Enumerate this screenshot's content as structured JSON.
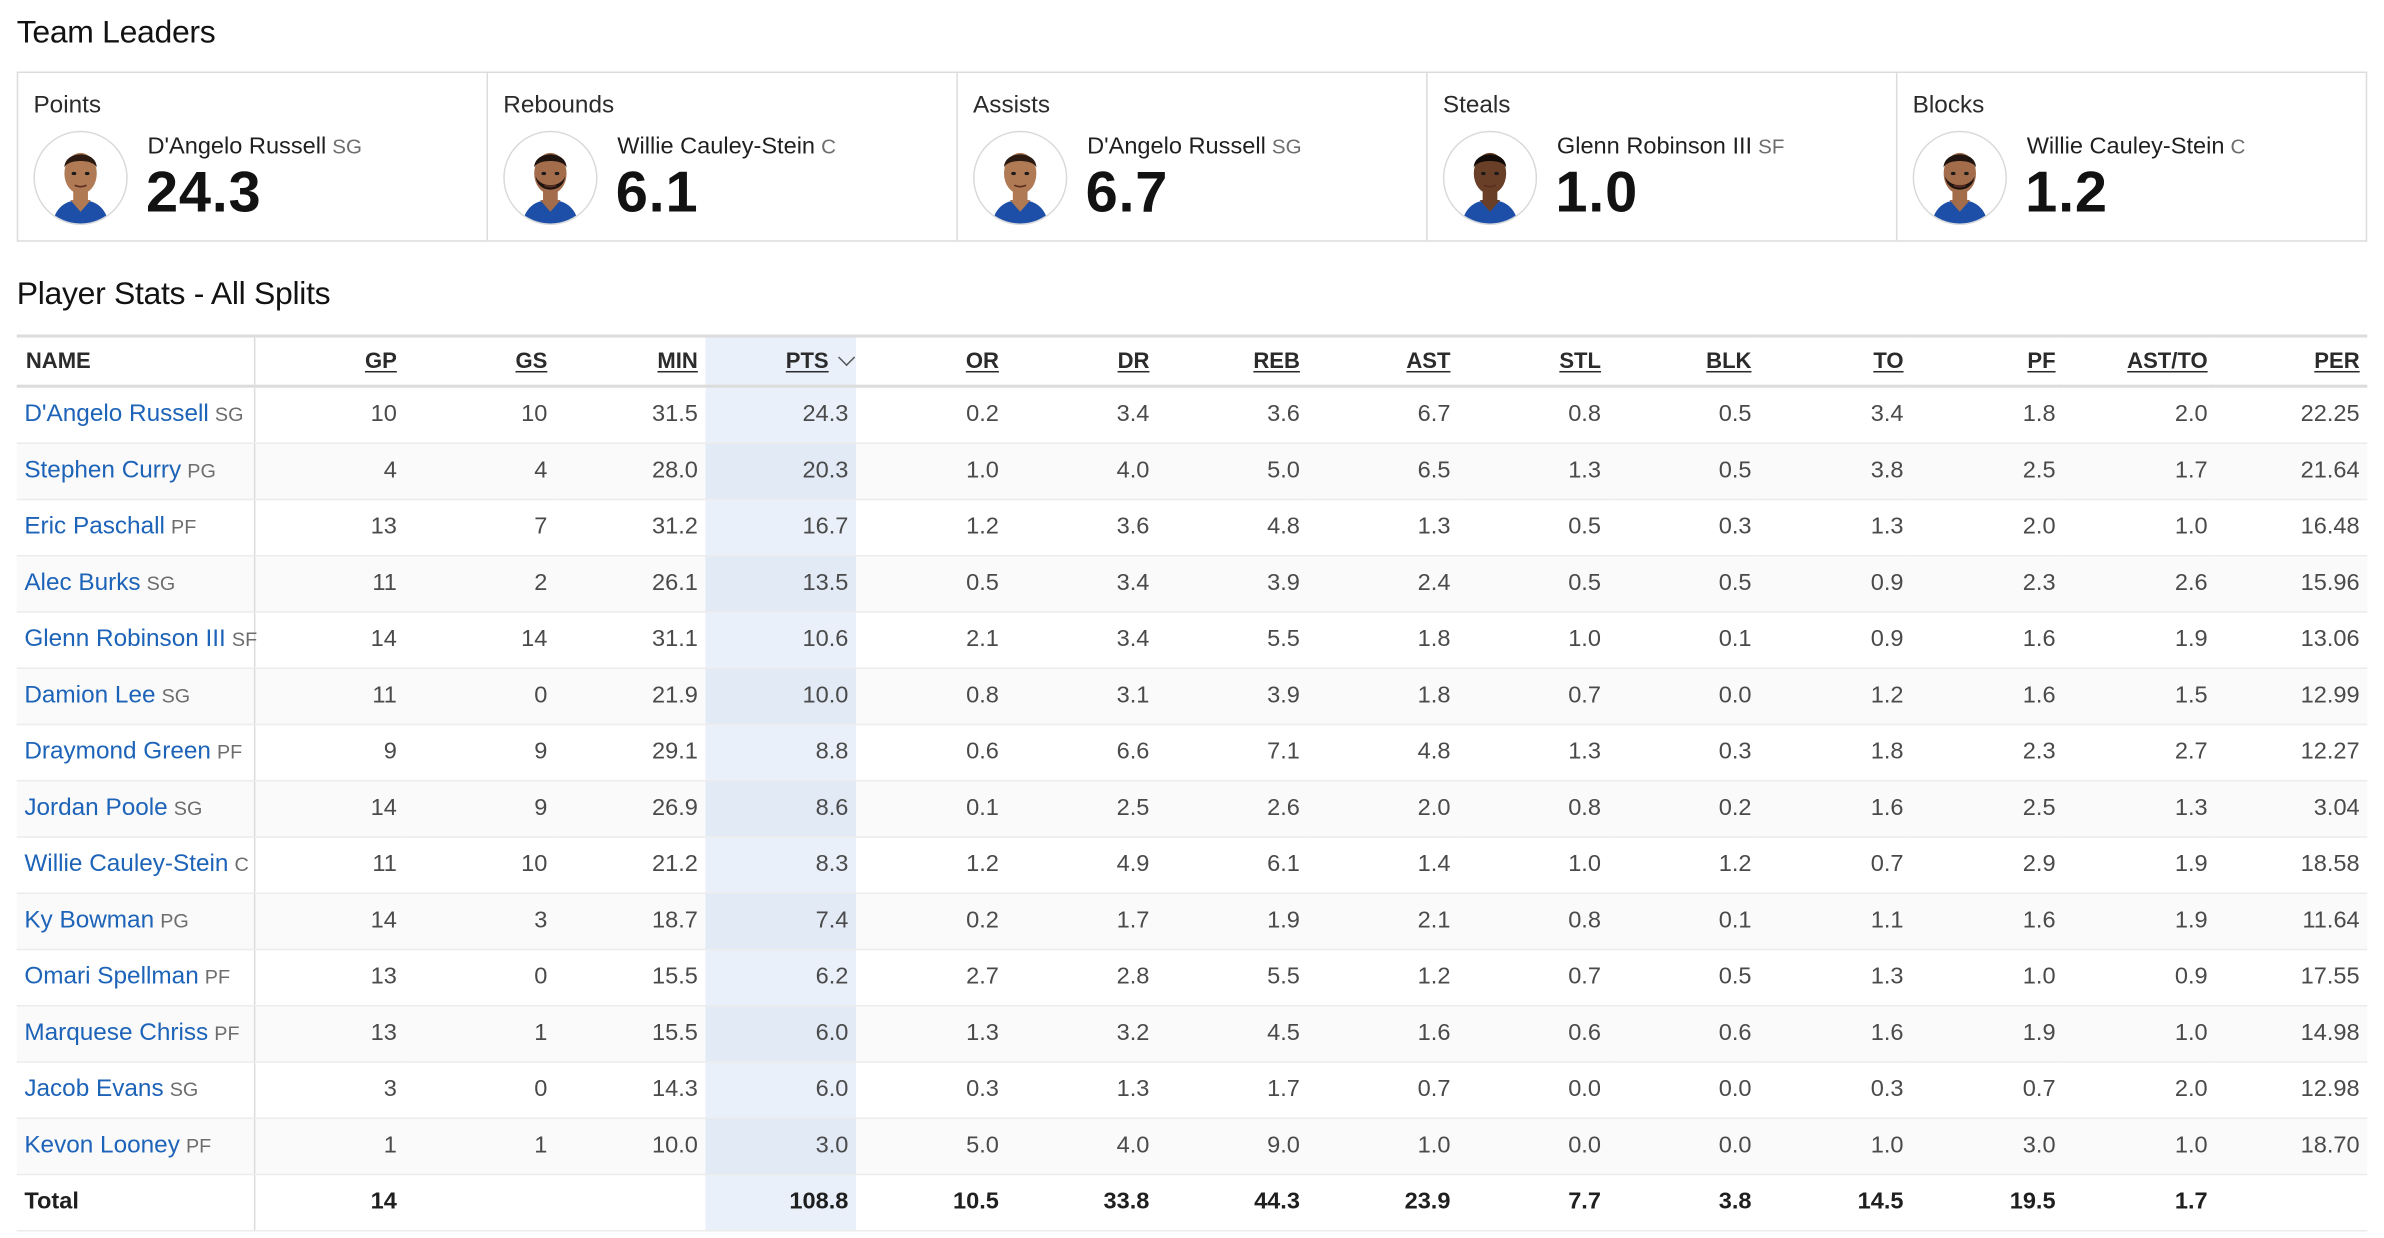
{
  "team_leaders": {
    "title": "Team Leaders",
    "cards": [
      {
        "category": "Points",
        "player": "D'Angelo Russell",
        "pos": "SG",
        "value": "24.3",
        "avatar": "dangelo-russell-headshot"
      },
      {
        "category": "Rebounds",
        "player": "Willie Cauley-Stein",
        "pos": "C",
        "value": "6.1",
        "avatar": "willie-cauley-stein-headshot"
      },
      {
        "category": "Assists",
        "player": "D'Angelo Russell",
        "pos": "SG",
        "value": "6.7",
        "avatar": "dangelo-russell-headshot"
      },
      {
        "category": "Steals",
        "player": "Glenn Robinson III",
        "pos": "SF",
        "value": "1.0",
        "avatar": "glenn-robinson-headshot"
      },
      {
        "category": "Blocks",
        "player": "Willie Cauley-Stein",
        "pos": "C",
        "value": "1.2",
        "avatar": "willie-cauley-stein-headshot"
      }
    ]
  },
  "player_stats": {
    "title": "Player Stats - All Splits",
    "sorted_column": "PTS",
    "columns": [
      "NAME",
      "GP",
      "GS",
      "MIN",
      "PTS",
      "OR",
      "DR",
      "REB",
      "AST",
      "STL",
      "BLK",
      "TO",
      "PF",
      "AST/TO",
      "PER"
    ],
    "rows": [
      {
        "name": "D'Angelo Russell",
        "pos": "SG",
        "stats": [
          "10",
          "10",
          "31.5",
          "24.3",
          "0.2",
          "3.4",
          "3.6",
          "6.7",
          "0.8",
          "0.5",
          "3.4",
          "1.8",
          "2.0",
          "22.25"
        ]
      },
      {
        "name": "Stephen Curry",
        "pos": "PG",
        "stats": [
          "4",
          "4",
          "28.0",
          "20.3",
          "1.0",
          "4.0",
          "5.0",
          "6.5",
          "1.3",
          "0.5",
          "3.8",
          "2.5",
          "1.7",
          "21.64"
        ]
      },
      {
        "name": "Eric Paschall",
        "pos": "PF",
        "stats": [
          "13",
          "7",
          "31.2",
          "16.7",
          "1.2",
          "3.6",
          "4.8",
          "1.3",
          "0.5",
          "0.3",
          "1.3",
          "2.0",
          "1.0",
          "16.48"
        ]
      },
      {
        "name": "Alec Burks",
        "pos": "SG",
        "stats": [
          "11",
          "2",
          "26.1",
          "13.5",
          "0.5",
          "3.4",
          "3.9",
          "2.4",
          "0.5",
          "0.5",
          "0.9",
          "2.3",
          "2.6",
          "15.96"
        ]
      },
      {
        "name": "Glenn Robinson III",
        "pos": "SF",
        "stats": [
          "14",
          "14",
          "31.1",
          "10.6",
          "2.1",
          "3.4",
          "5.5",
          "1.8",
          "1.0",
          "0.1",
          "0.9",
          "1.6",
          "1.9",
          "13.06"
        ]
      },
      {
        "name": "Damion Lee",
        "pos": "SG",
        "stats": [
          "11",
          "0",
          "21.9",
          "10.0",
          "0.8",
          "3.1",
          "3.9",
          "1.8",
          "0.7",
          "0.0",
          "1.2",
          "1.6",
          "1.5",
          "12.99"
        ]
      },
      {
        "name": "Draymond Green",
        "pos": "PF",
        "stats": [
          "9",
          "9",
          "29.1",
          "8.8",
          "0.6",
          "6.6",
          "7.1",
          "4.8",
          "1.3",
          "0.3",
          "1.8",
          "2.3",
          "2.7",
          "12.27"
        ]
      },
      {
        "name": "Jordan Poole",
        "pos": "SG",
        "stats": [
          "14",
          "9",
          "26.9",
          "8.6",
          "0.1",
          "2.5",
          "2.6",
          "2.0",
          "0.8",
          "0.2",
          "1.6",
          "2.5",
          "1.3",
          "3.04"
        ]
      },
      {
        "name": "Willie Cauley-Stein",
        "pos": "C",
        "stats": [
          "11",
          "10",
          "21.2",
          "8.3",
          "1.2",
          "4.9",
          "6.1",
          "1.4",
          "1.0",
          "1.2",
          "0.7",
          "2.9",
          "1.9",
          "18.58"
        ]
      },
      {
        "name": "Ky Bowman",
        "pos": "PG",
        "stats": [
          "14",
          "3",
          "18.7",
          "7.4",
          "0.2",
          "1.7",
          "1.9",
          "2.1",
          "0.8",
          "0.1",
          "1.1",
          "1.6",
          "1.9",
          "11.64"
        ]
      },
      {
        "name": "Omari Spellman",
        "pos": "PF",
        "stats": [
          "13",
          "0",
          "15.5",
          "6.2",
          "2.7",
          "2.8",
          "5.5",
          "1.2",
          "0.7",
          "0.5",
          "1.3",
          "1.0",
          "0.9",
          "17.55"
        ]
      },
      {
        "name": "Marquese Chriss",
        "pos": "PF",
        "stats": [
          "13",
          "1",
          "15.5",
          "6.0",
          "1.3",
          "3.2",
          "4.5",
          "1.6",
          "0.6",
          "0.6",
          "1.6",
          "1.9",
          "1.0",
          "14.98"
        ]
      },
      {
        "name": "Jacob Evans",
        "pos": "SG",
        "stats": [
          "3",
          "0",
          "14.3",
          "6.0",
          "0.3",
          "1.3",
          "1.7",
          "0.7",
          "0.0",
          "0.0",
          "0.3",
          "0.7",
          "2.0",
          "12.98"
        ]
      },
      {
        "name": "Kevon Looney",
        "pos": "PF",
        "stats": [
          "1",
          "1",
          "10.0",
          "3.0",
          "5.0",
          "4.0",
          "9.0",
          "1.0",
          "0.0",
          "0.0",
          "1.0",
          "3.0",
          "1.0",
          "18.70"
        ]
      }
    ],
    "total": {
      "label": "Total",
      "stats": [
        "14",
        "",
        "",
        "108.8",
        "10.5",
        "33.8",
        "44.3",
        "23.9",
        "7.7",
        "3.8",
        "14.5",
        "19.5",
        "1.7",
        ""
      ]
    }
  }
}
